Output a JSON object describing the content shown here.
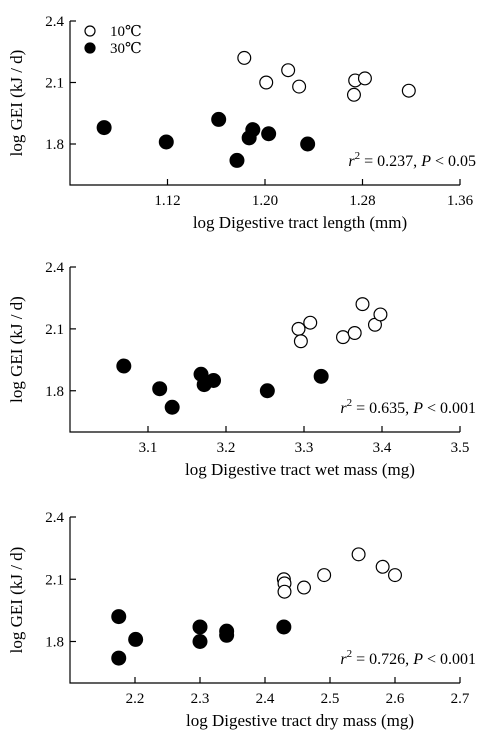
{
  "chart_data": [
    {
      "type": "scatter",
      "xlabel": "log  Digestive tract length (mm)",
      "ylabel": "log GEI (kJ / d)",
      "xlim": [
        1.04,
        1.36
      ],
      "ylim": [
        1.6,
        2.4
      ],
      "xticks": [
        "1.12",
        "1.20",
        "1.28",
        "1.36"
      ],
      "yticks": [
        "1.8",
        "2.1",
        "2.4"
      ],
      "legend": {
        "placement": "top-left",
        "entries": [
          "10℃",
          "30℃"
        ]
      },
      "annotation": {
        "r2_label": "r",
        "r2_sup": "2",
        "r2_value": " = 0.237, ",
        "p_label": "P",
        "p_value": " < 0.05"
      },
      "series": [
        {
          "name": "10℃",
          "marker": "open-circle",
          "x": [
            1.183,
            1.201,
            1.219,
            1.228,
            1.273,
            1.274,
            1.282,
            1.318
          ],
          "y": [
            2.22,
            2.1,
            2.16,
            2.08,
            2.04,
            2.11,
            2.12,
            2.06
          ]
        },
        {
          "name": "30℃",
          "marker": "filled-circle",
          "x": [
            1.068,
            1.119,
            1.162,
            1.177,
            1.187,
            1.19,
            1.203,
            1.235
          ],
          "y": [
            1.88,
            1.81,
            1.92,
            1.72,
            1.83,
            1.87,
            1.85,
            1.8
          ]
        }
      ]
    },
    {
      "type": "scatter",
      "xlabel": "log  Digestive tract wet mass (mg)",
      "ylabel": "log GEI (kJ / d)",
      "xlim": [
        3.0,
        3.5
      ],
      "ylim": [
        1.6,
        2.4
      ],
      "xticks": [
        "3.1",
        "3.2",
        "3.3",
        "3.4",
        "3.5"
      ],
      "yticks": [
        "1.8",
        "2.1",
        "2.4"
      ],
      "annotation": {
        "r2_label": "r",
        "r2_sup": "2",
        "r2_value": " = 0.635, ",
        "p_label": "P",
        "p_value": " < 0.001"
      },
      "series": [
        {
          "name": "10℃",
          "marker": "open-circle",
          "x": [
            3.293,
            3.296,
            3.308,
            3.35,
            3.365,
            3.375,
            3.391,
            3.398
          ],
          "y": [
            2.1,
            2.04,
            2.13,
            2.06,
            2.08,
            2.22,
            2.12,
            2.17
          ]
        },
        {
          "name": "30℃",
          "marker": "filled-circle",
          "x": [
            3.069,
            3.115,
            3.131,
            3.168,
            3.172,
            3.184,
            3.253,
            3.322
          ],
          "y": [
            1.92,
            1.81,
            1.72,
            1.88,
            1.83,
            1.85,
            1.8,
            1.87
          ]
        }
      ]
    },
    {
      "type": "scatter",
      "xlabel": "log  Digestive tract dry mass (mg)",
      "ylabel": "log GEI (kJ / d)",
      "xlim": [
        2.1,
        2.7
      ],
      "ylim": [
        1.6,
        2.4
      ],
      "xticks": [
        "2.2",
        "2.3",
        "2.4",
        "2.5",
        "2.6",
        "2.7"
      ],
      "yticks": [
        "1.8",
        "2.1",
        "2.4"
      ],
      "annotation": {
        "r2_label": "r",
        "r2_sup": "2",
        "r2_value": " = 0.726, ",
        "p_label": "P",
        "p_value": " < 0.001"
      },
      "series": [
        {
          "name": "10℃",
          "marker": "open-circle",
          "x": [
            2.429,
            2.43,
            2.43,
            2.46,
            2.491,
            2.544,
            2.581,
            2.6
          ],
          "y": [
            2.1,
            2.08,
            2.04,
            2.06,
            2.12,
            2.22,
            2.16,
            2.12
          ]
        },
        {
          "name": "30℃",
          "marker": "filled-circle",
          "x": [
            2.175,
            2.175,
            2.201,
            2.3,
            2.3,
            2.341,
            2.341,
            2.429
          ],
          "y": [
            1.92,
            1.72,
            1.81,
            1.87,
            1.8,
            1.85,
            1.83,
            1.87
          ]
        }
      ]
    }
  ]
}
